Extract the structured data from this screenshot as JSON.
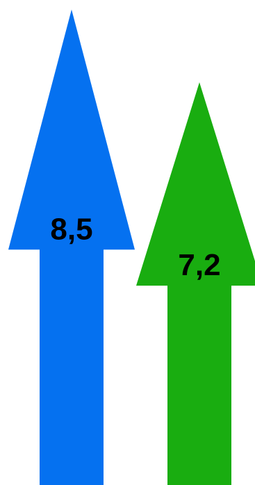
{
  "chart_data": {
    "type": "bar",
    "categories": [
      "",
      ""
    ],
    "values": [
      8.5,
      7.2
    ],
    "value_labels": [
      "8,5",
      "7,2"
    ],
    "colors": [
      "#0571f0",
      "#19ad10"
    ],
    "marker": "arrow",
    "title": "",
    "xlabel": "",
    "ylabel": ""
  }
}
